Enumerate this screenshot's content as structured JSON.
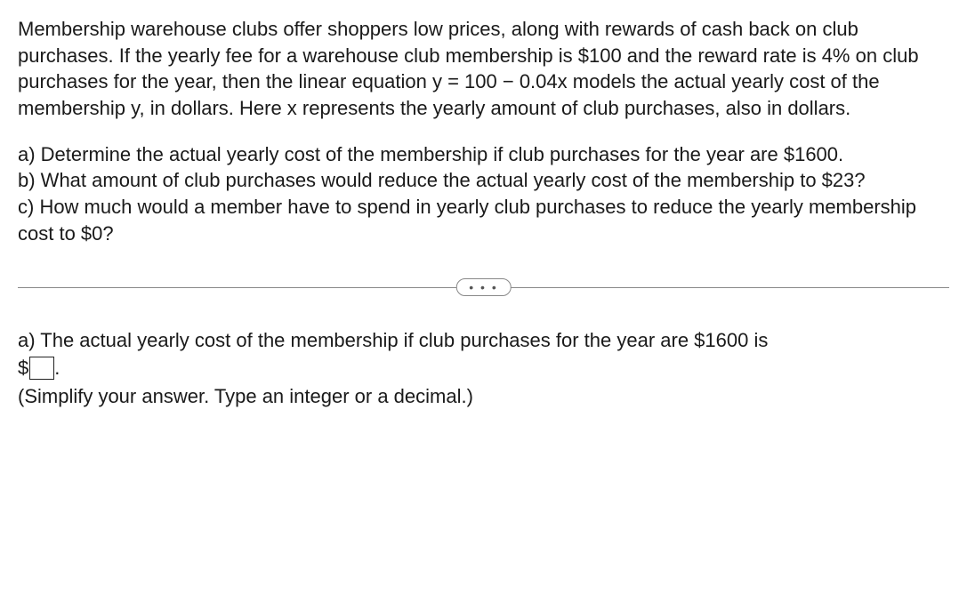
{
  "problem": {
    "intro": "Membership warehouse clubs offer shoppers low prices, along with rewards of cash back on club purchases. If the yearly fee for a warehouse club membership is $100 and the reward rate is 4% on club purchases for the year, then the linear equation y = 100 − 0.04x models the actual yearly cost of the membership y, in dollars. Here x represents the yearly amount of club purchases, also in dollars.",
    "part_a": "a) Determine the actual yearly cost of the membership if club purchases for the year are $1600.",
    "part_b": "b) What amount of club purchases would reduce the actual yearly cost of the membership to $23?",
    "part_c": "c) How much would a member have to spend in yearly club purchases to reduce the yearly membership cost to $0?"
  },
  "divider": {
    "dots": "• • •"
  },
  "answer": {
    "prompt_a": "a) The actual yearly cost of the membership if club purchases for the year are $1600 is",
    "currency": "$",
    "period": ".",
    "hint": "(Simplify your answer. Type an integer or a decimal.)"
  }
}
